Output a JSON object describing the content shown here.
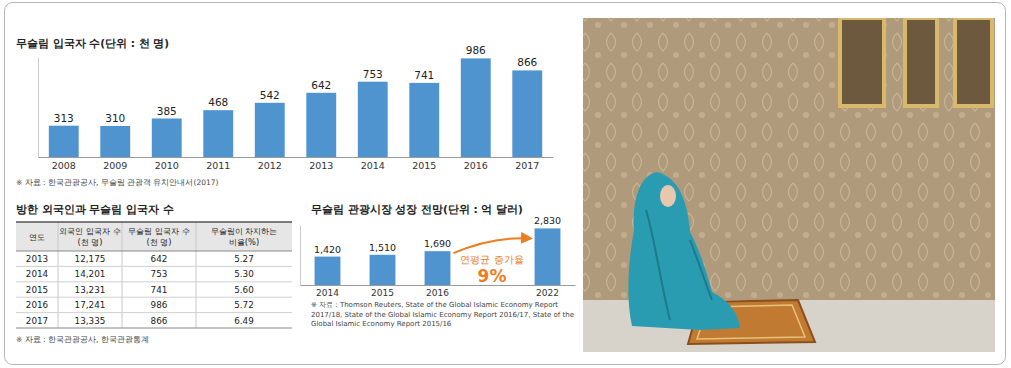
{
  "chart_data": [
    {
      "type": "bar",
      "title": "무슬림 입국자 수(단위 : 천 명)",
      "categories": [
        "2008",
        "2009",
        "2010",
        "2011",
        "2012",
        "2013",
        "2014",
        "2015",
        "2016",
        "2017"
      ],
      "values": [
        313,
        310,
        385,
        468,
        542,
        642,
        753,
        741,
        986,
        866
      ],
      "color": "#4f93cf",
      "ylim": [
        0,
        1000
      ],
      "data_labels": true,
      "tick_labels": "x",
      "source": "※ 자료 : 한국관광공사, 무슬림 관광객 유치안내서(2017)"
    },
    {
      "type": "bar",
      "title": "무슬림 관광시장 성장 전망(단위 : 억 달러)",
      "categories": [
        "2014",
        "2015",
        "2016",
        "2022"
      ],
      "values": [
        1420,
        1510,
        1690,
        2830
      ],
      "value_labels": [
        "1,420",
        "1,510",
        "1,690",
        "2,830"
      ],
      "color": "#4f93cf",
      "ylim": [
        0,
        3000
      ],
      "data_labels": true,
      "tick_labels": "x",
      "annotations": [
        "연평균 증가율",
        "9%"
      ],
      "source": [
        "※ 자료 : Thomson Reuters, State of the Global Islamic Economy Report",
        "2017/18, State of the Global Islamic Economy Report 2016/17, State of the",
        "Global Islamic Economy Report 2015/16"
      ]
    }
  ],
  "table": {
    "title": "방한 외국인과 무슬림 입국자 수",
    "columns": [
      [
        "연도"
      ],
      [
        "외국인 입국자 수",
        "(천 명)"
      ],
      [
        "무슬림 입국자 수",
        "(천 명)"
      ],
      [
        "무슬림이 차지하는",
        "비율(%)"
      ]
    ],
    "rows": [
      [
        2013,
        "12,175",
        642,
        "5.27"
      ],
      [
        2014,
        "14,201",
        753,
        "5.30"
      ],
      [
        2015,
        "13,231",
        741,
        "5.60"
      ],
      [
        2016,
        "17,241",
        986,
        "5.72"
      ],
      [
        2017,
        "13,335",
        866,
        "6.49"
      ]
    ],
    "source": "※ 자료 : 한국관광공사, 한국관광통계"
  }
}
